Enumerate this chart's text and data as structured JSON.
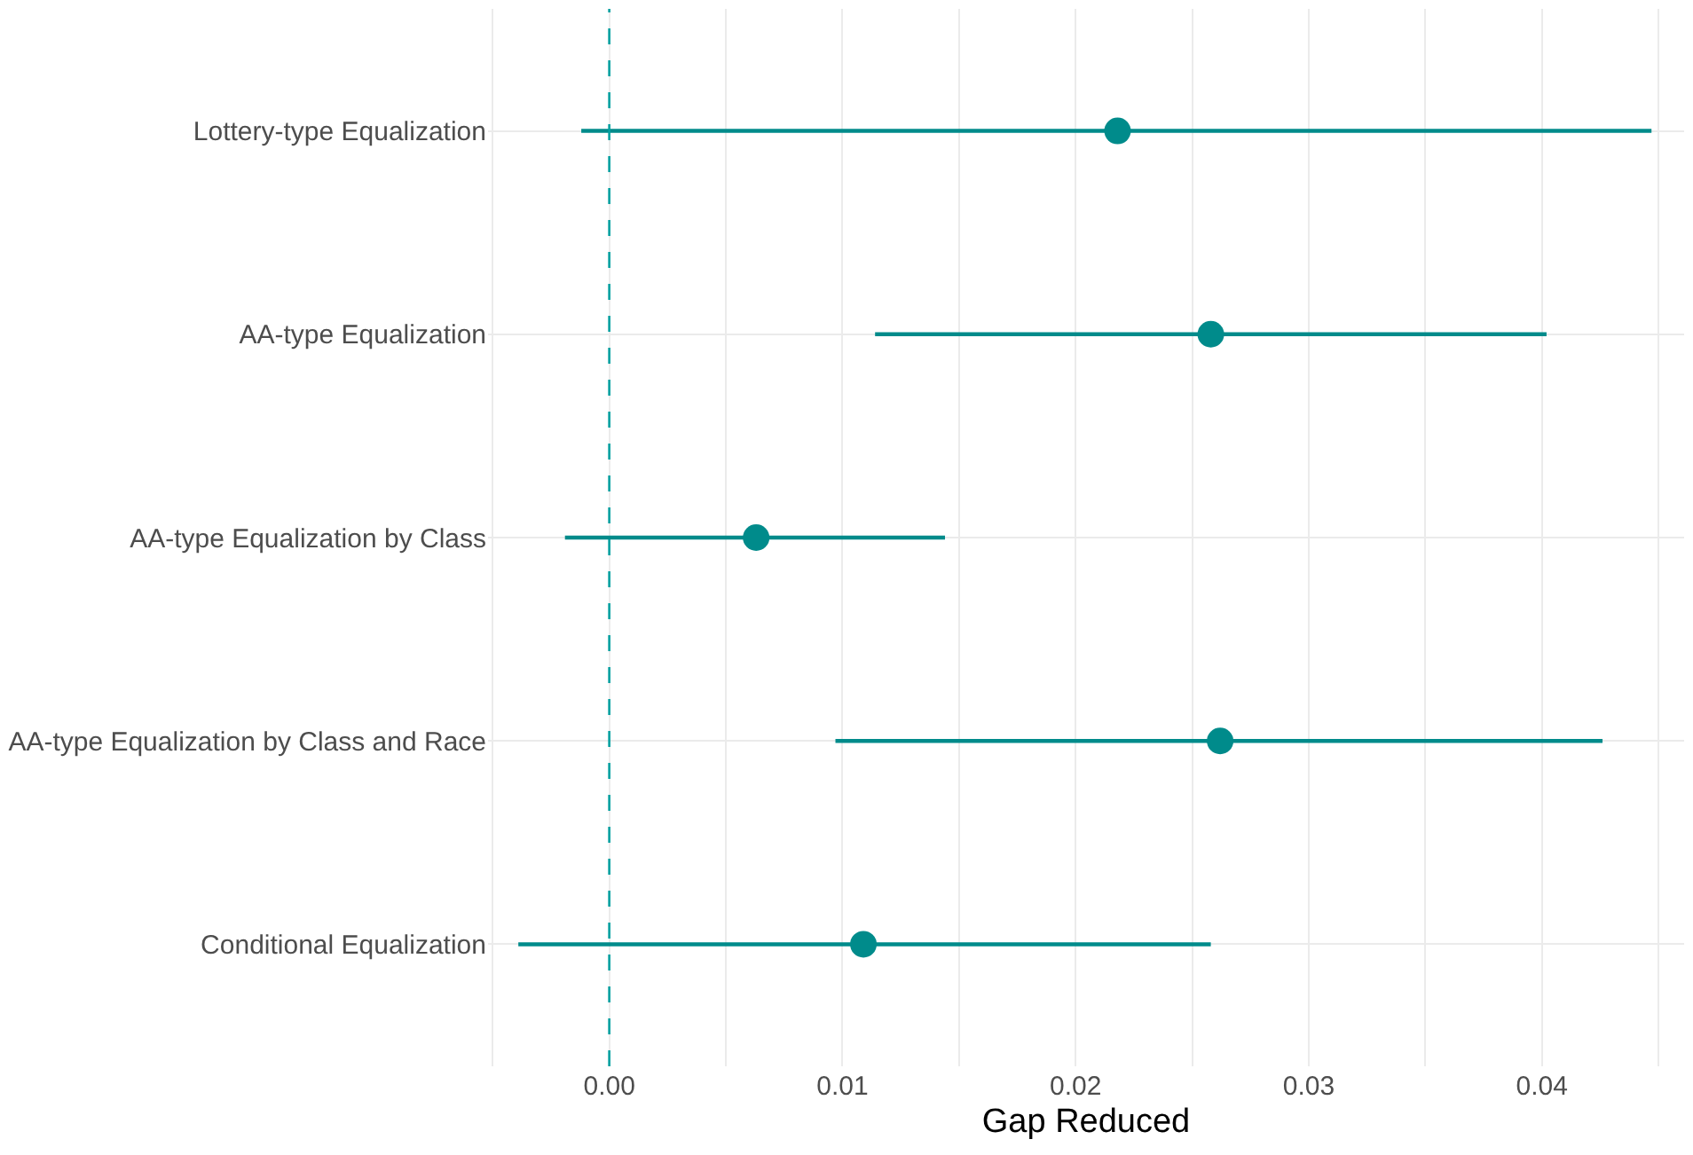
{
  "chart_data": {
    "type": "scatter",
    "orientation": "horizontal",
    "xlabel": "Gap Reduced",
    "categories": [
      "Lottery-type Equalization",
      "AA-type Equalization",
      "AA-type Equalization by Class",
      "AA-type Equalization by Class and Race",
      "Conditional Equalization"
    ],
    "series": [
      {
        "color": "#008b8b",
        "values": [
          0.0218,
          0.0258,
          0.0063,
          0.0262,
          0.0109
        ],
        "errors": [
          [
            -0.0012,
            0.0447
          ],
          [
            0.0114,
            0.0402
          ],
          [
            -0.0019,
            0.0144
          ],
          [
            0.0097,
            0.0426
          ],
          [
            -0.0039,
            0.0258
          ]
        ]
      }
    ],
    "xlim": [
      -0.0052,
      0.0461
    ],
    "xticks": [
      {
        "value": -0.005,
        "label": null
      },
      {
        "value": 0,
        "label": "0.00"
      },
      {
        "value": 0.005,
        "label": null
      },
      {
        "value": 0.01,
        "label": "0.01"
      },
      {
        "value": 0.015,
        "label": null
      },
      {
        "value": 0.02,
        "label": "0.02"
      },
      {
        "value": 0.025,
        "label": null
      },
      {
        "value": 0.03,
        "label": "0.03"
      },
      {
        "value": 0.035,
        "label": null
      },
      {
        "value": 0.04,
        "label": "0.04"
      },
      {
        "value": 0.045,
        "label": null
      }
    ],
    "ref_lines": [
      {
        "axis": "x",
        "value": 0,
        "color": "#00a0a0",
        "line_style": "dashed"
      }
    ],
    "grid": true,
    "marker": "circle"
  }
}
